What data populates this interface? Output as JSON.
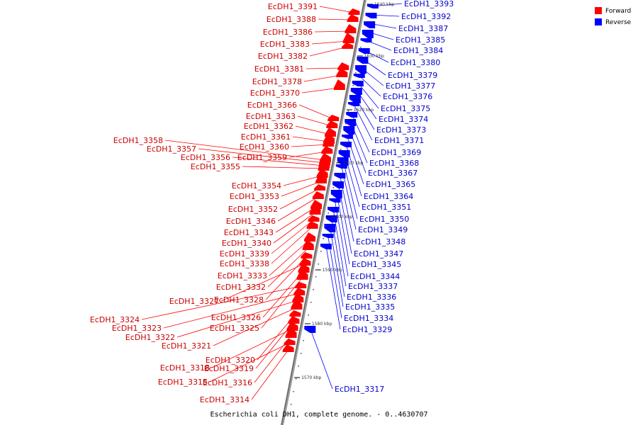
{
  "caption": "Escherichia coli DH1, complete genome. - 0..4630707",
  "legend": {
    "forward_label": "Forward",
    "reverse_label": "Reverse",
    "forward_color": "#ff0000",
    "reverse_color": "#0000ff",
    "label_forward_color": "#cc0000",
    "label_reverse_color": "#0000cc"
  },
  "ticks": [
    "1640 kbp",
    "1630 kbp",
    "1620 kbp",
    "1610 kbp",
    "1600 kbp",
    "1590 kbp",
    "1580 kbp",
    "1570 kbp"
  ],
  "forward_genes": [
    "EcDH1_3391",
    "EcDH1_3388",
    "EcDH1_3386",
    "EcDH1_3383",
    "EcDH1_3382",
    "EcDH1_3381",
    "EcDH1_3378",
    "EcDH1_3370",
    "EcDH1_3366",
    "EcDH1_3363",
    "EcDH1_3362",
    "EcDH1_3361",
    "EcDH1_3360",
    "EcDH1_3359",
    "EcDH1_3358",
    "EcDH1_3357",
    "EcDH1_3356",
    "EcDH1_3355",
    "EcDH1_3354",
    "EcDH1_3353",
    "EcDH1_3352",
    "EcDH1_3346",
    "EcDH1_3343",
    "EcDH1_3340",
    "EcDH1_3339",
    "EcDH1_3338",
    "EcDH1_3333",
    "EcDH1_3332",
    "EcDH1_3328",
    "EcDH1_3327",
    "EcDH1_3326",
    "EcDH1_3325",
    "EcDH1_3324",
    "EcDH1_3323",
    "EcDH1_3322",
    "EcDH1_3321",
    "EcDH1_3320",
    "EcDH1_3319",
    "EcDH1_3318",
    "EcDH1_3316",
    "EcDH1_3315",
    "EcDH1_3314"
  ],
  "reverse_genes": [
    "EcDH1_3393",
    "EcDH1_3392",
    "EcDH1_3387",
    "EcDH1_3385",
    "EcDH1_3384",
    "EcDH1_3380",
    "EcDH1_3379",
    "EcDH1_3377",
    "EcDH1_3376",
    "EcDH1_3375",
    "EcDH1_3374",
    "EcDH1_3373",
    "EcDH1_3371",
    "EcDH1_3369",
    "EcDH1_3368",
    "EcDH1_3367",
    "EcDH1_3365",
    "EcDH1_3364",
    "EcDH1_3351",
    "EcDH1_3350",
    "EcDH1_3349",
    "EcDH1_3348",
    "EcDH1_3347",
    "EcDH1_3345",
    "EcDH1_3344",
    "EcDH1_3337",
    "EcDH1_3336",
    "EcDH1_3335",
    "EcDH1_3334",
    "EcDH1_3329",
    "EcDH1_3317"
  ]
}
